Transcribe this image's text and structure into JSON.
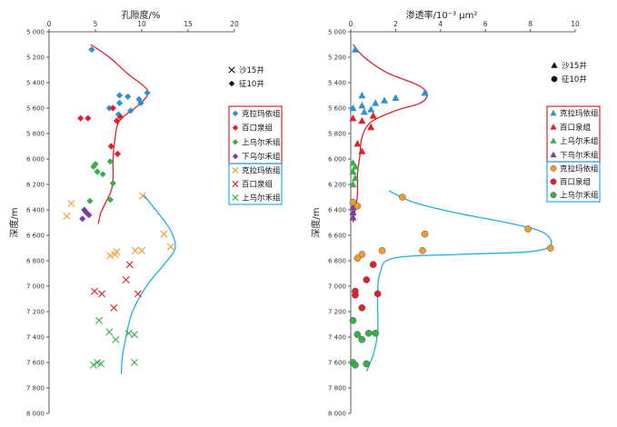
{
  "chart_data": [
    {
      "type": "scatter",
      "title": "",
      "xlabel": "孔隙度/%",
      "ylabel": "深度/m",
      "xlim": [
        0,
        20
      ],
      "ylim": [
        5000,
        8000
      ],
      "x_ticks": [
        "0",
        "5",
        "10",
        "15",
        "20"
      ],
      "y_ticks": [
        "5 000",
        "5 200",
        "5 400",
        "5 600",
        "5 800",
        "6 000",
        "6 200",
        "6 400",
        "6 600",
        "6 800",
        "7 000",
        "7 200",
        "7 400",
        "7 600",
        "7 800",
        "8 000"
      ],
      "well_legend": [
        {
          "label": "沙15井",
          "marker": "cross"
        },
        {
          "label": "征10井",
          "marker": "diamond"
        }
      ],
      "legend_groups": [
        {
          "box_color": "#e0202a",
          "items": [
            {
              "label": "克拉玛依组",
              "color": "#2f8fd0",
              "marker": "diamond"
            },
            {
              "label": "百口泉组",
              "color": "#e0202a",
              "marker": "diamond"
            },
            {
              "label": "上乌尔禾组",
              "color": "#3bae49",
              "marker": "diamond"
            },
            {
              "label": "下乌尔禾组",
              "color": "#7a3f9e",
              "marker": "diamond"
            }
          ]
        },
        {
          "box_color": "#22aee6",
          "items": [
            {
              "label": "克拉玛依组",
              "color": "#f29a2e",
              "marker": "cross"
            },
            {
              "label": "百口泉组",
              "color": "#e0202a",
              "marker": "cross"
            },
            {
              "label": "上乌尔禾组",
              "color": "#3bae49",
              "marker": "cross"
            }
          ]
        }
      ],
      "series": [
        {
          "name": "征10井 克拉玛依组",
          "color": "#2f8fd0",
          "marker": "diamond",
          "points": [
            [
              4.6,
              5140
            ],
            [
              6.5,
              5600
            ],
            [
              8.5,
              5510
            ],
            [
              9.7,
              5530
            ],
            [
              9.9,
              5560
            ],
            [
              10.6,
              5480
            ],
            [
              7.6,
              5500
            ],
            [
              7.6,
              5560
            ],
            [
              8.8,
              5620
            ],
            [
              7.5,
              5650
            ]
          ]
        },
        {
          "name": "征10井 百口泉组",
          "color": "#e0202a",
          "marker": "diamond",
          "points": [
            [
              3.4,
              5680
            ],
            [
              4.2,
              5680
            ],
            [
              7.3,
              5700
            ],
            [
              7.7,
              5670
            ],
            [
              6.7,
              5900
            ],
            [
              7.4,
              5960
            ],
            [
              6.9,
              5600
            ]
          ]
        },
        {
          "name": "征10井 上乌尔禾组",
          "color": "#3bae49",
          "marker": "diamond",
          "points": [
            [
              5.2,
              6100
            ],
            [
              5.8,
              6120
            ],
            [
              5.0,
              6040
            ],
            [
              4.8,
              6060
            ],
            [
              6.6,
              6020
            ],
            [
              6.9,
              6190
            ],
            [
              6.6,
              6320
            ],
            [
              4.4,
              6330
            ]
          ]
        },
        {
          "name": "征10井 下乌尔禾组",
          "color": "#7a3f9e",
          "marker": "diamond",
          "points": [
            [
              3.8,
              6400
            ],
            [
              3.6,
              6470
            ],
            [
              4.3,
              6440
            ],
            [
              4.0,
              6420
            ]
          ]
        },
        {
          "name": "沙15井 克拉玛依组",
          "color": "#f29a2e",
          "marker": "cross",
          "points": [
            [
              10.1,
              6290
            ],
            [
              2.4,
              6350
            ],
            [
              1.9,
              6450
            ],
            [
              12.4,
              6590
            ],
            [
              13.1,
              6690
            ],
            [
              7.3,
              6730
            ],
            [
              6.6,
              6760
            ],
            [
              9.3,
              6720
            ],
            [
              10.0,
              6720
            ],
            [
              7.1,
              6750
            ]
          ]
        },
        {
          "name": "沙15井 百口泉组",
          "color": "#e0202a",
          "marker": "cross",
          "points": [
            [
              4.9,
              7040
            ],
            [
              5.7,
              7060
            ],
            [
              7.0,
              7170
            ],
            [
              8.7,
              6830
            ],
            [
              8.3,
              6950
            ],
            [
              9.6,
              7060
            ]
          ]
        },
        {
          "name": "沙15井 上乌尔禾组",
          "color": "#3bae49",
          "marker": "cross",
          "points": [
            [
              5.4,
              7270
            ],
            [
              6.5,
              7360
            ],
            [
              7.2,
              7420
            ],
            [
              8.6,
              7370
            ],
            [
              9.2,
              7380
            ],
            [
              4.8,
              7620
            ],
            [
              5.2,
              7600
            ],
            [
              5.6,
              7610
            ],
            [
              9.2,
              7600
            ]
          ]
        }
      ],
      "trend_lines": [
        {
          "color": "#e0202a",
          "points": [
            [
              4.5,
              5100
            ],
            [
              6.5,
              5200
            ],
            [
              8.5,
              5330
            ],
            [
              10.4,
              5440
            ],
            [
              10.6,
              5500
            ],
            [
              9.6,
              5580
            ],
            [
              7.6,
              5700
            ],
            [
              7.1,
              5850
            ],
            [
              6.9,
              6000
            ],
            [
              6.9,
              6150
            ],
            [
              6.7,
              6250
            ],
            [
              6.2,
              6330
            ],
            [
              5.6,
              6420
            ],
            [
              5.3,
              6510
            ]
          ]
        },
        {
          "color": "#22aee6",
          "points": [
            [
              7.8,
              7690
            ],
            [
              7.9,
              7560
            ],
            [
              8.3,
              7400
            ],
            [
              9.0,
              7200
            ],
            [
              10.6,
              6990
            ],
            [
              12.4,
              6830
            ],
            [
              13.6,
              6700
            ],
            [
              13.1,
              6560
            ],
            [
              11.6,
              6410
            ],
            [
              10.2,
              6280
            ]
          ]
        }
      ]
    },
    {
      "type": "scatter",
      "title": "",
      "xlabel": "渗透率/10⁻³ μm²",
      "ylabel": "深度/m",
      "xlim": [
        0,
        10
      ],
      "ylim": [
        5000,
        8000
      ],
      "x_ticks": [
        "0",
        "2",
        "4",
        "6",
        "8",
        "10"
      ],
      "y_ticks": [
        "5 000",
        "5 200",
        "5 400",
        "5 600",
        "5 800",
        "6 000",
        "6 200",
        "6 400",
        "6 600",
        "6 800",
        "7 000",
        "7 200",
        "7 400",
        "7 600",
        "7 800",
        "8 000"
      ],
      "well_legend": [
        {
          "label": "沙15井",
          "marker": "triangle"
        },
        {
          "label": "征10井",
          "marker": "circle"
        }
      ],
      "legend_groups": [
        {
          "box_color": "#e0202a",
          "items": [
            {
              "label": "克拉玛依组",
              "color": "#2f8fd0",
              "marker": "triangle"
            },
            {
              "label": "百口泉组",
              "color": "#e0202a",
              "marker": "triangle"
            },
            {
              "label": "上乌尔禾组",
              "color": "#3bae49",
              "marker": "triangle"
            },
            {
              "label": "下乌尔禾组",
              "color": "#7a3f9e",
              "marker": "triangle"
            }
          ]
        },
        {
          "box_color": "#22aee6",
          "items": [
            {
              "label": "克拉玛依组",
              "color": "#f29a2e",
              "marker": "circle"
            },
            {
              "label": "百口泉组",
              "color": "#e0202a",
              "marker": "circle"
            },
            {
              "label": "上乌尔禾组",
              "color": "#3bae49",
              "marker": "circle"
            }
          ]
        }
      ],
      "series": [
        {
          "name": "沙15井 克拉玛依组",
          "color": "#2f8fd0",
          "marker": "triangle",
          "points": [
            [
              0.2,
              5140
            ],
            [
              3.3,
              5480
            ],
            [
              2.0,
              5520
            ],
            [
              1.5,
              5540
            ],
            [
              0.5,
              5500
            ],
            [
              1.1,
              5560
            ],
            [
              0.1,
              5600
            ],
            [
              0.5,
              5580
            ],
            [
              0.6,
              5630
            ],
            [
              0.9,
              5610
            ]
          ]
        },
        {
          "name": "沙15井 百口泉组",
          "color": "#e0202a",
          "marker": "triangle",
          "points": [
            [
              0.1,
              5680
            ],
            [
              1.0,
              5660
            ],
            [
              0.5,
              5700
            ],
            [
              0.9,
              5750
            ],
            [
              0.3,
              5880
            ],
            [
              0.5,
              5940
            ]
          ]
        },
        {
          "name": "沙15井 上乌尔禾组",
          "color": "#3bae49",
          "marker": "triangle",
          "points": [
            [
              0.1,
              6030
            ],
            [
              0.2,
              6060
            ],
            [
              0.1,
              6100
            ],
            [
              0.2,
              6150
            ],
            [
              0.1,
              6200
            ]
          ]
        },
        {
          "name": "沙15井 下乌尔禾组",
          "color": "#7a3f9e",
          "marker": "triangle",
          "points": [
            [
              0.1,
              6380
            ],
            [
              0.1,
              6420
            ],
            [
              0.1,
              6460
            ]
          ]
        },
        {
          "name": "征10井 克拉玛依组",
          "color": "#f29a2e",
          "marker": "circle",
          "points": [
            [
              2.3,
              6300
            ],
            [
              0.1,
              6340
            ],
            [
              0.3,
              6370
            ],
            [
              7.9,
              6550
            ],
            [
              3.3,
              6590
            ],
            [
              8.9,
              6700
            ],
            [
              3.2,
              6720
            ],
            [
              1.4,
              6720
            ],
            [
              0.5,
              6750
            ],
            [
              0.3,
              6780
            ]
          ]
        },
        {
          "name": "征10井 百口泉组",
          "color": "#e0202a",
          "marker": "circle",
          "points": [
            [
              1.0,
              6830
            ],
            [
              0.7,
              6950
            ],
            [
              0.2,
              7040
            ],
            [
              0.2,
              7070
            ],
            [
              1.2,
              7060
            ],
            [
              0.5,
              7170
            ]
          ]
        },
        {
          "name": "征10井 上乌尔禾组",
          "color": "#3bae49",
          "marker": "circle",
          "points": [
            [
              0.1,
              7270
            ],
            [
              0.3,
              7380
            ],
            [
              0.5,
              7420
            ],
            [
              0.8,
              7370
            ],
            [
              1.1,
              7370
            ],
            [
              0.1,
              7600
            ],
            [
              0.2,
              7620
            ],
            [
              0.7,
              7610
            ]
          ]
        }
      ],
      "trend_lines": [
        {
          "color": "#e0202a",
          "points": [
            [
              0.1,
              5100
            ],
            [
              0.6,
              5200
            ],
            [
              1.6,
              5320
            ],
            [
              3.0,
              5420
            ],
            [
              3.4,
              5490
            ],
            [
              3.1,
              5560
            ],
            [
              2.0,
              5620
            ],
            [
              0.9,
              5710
            ],
            [
              0.5,
              5830
            ],
            [
              0.4,
              5980
            ],
            [
              0.3,
              6120
            ],
            [
              0.3,
              6280
            ],
            [
              0.2,
              6400
            ],
            [
              0.1,
              6500
            ]
          ]
        },
        {
          "color": "#22aee6",
          "points": [
            [
              0.7,
              7670
            ],
            [
              1.0,
              7540
            ],
            [
              1.2,
              7360
            ],
            [
              1.2,
              7100
            ],
            [
              1.3,
              6900
            ],
            [
              1.9,
              6780
            ],
            [
              4.9,
              6750
            ],
            [
              7.9,
              6730
            ],
            [
              8.9,
              6680
            ],
            [
              8.6,
              6580
            ],
            [
              7.2,
              6510
            ],
            [
              4.6,
              6420
            ],
            [
              2.8,
              6340
            ],
            [
              1.7,
              6250
            ]
          ]
        }
      ]
    }
  ]
}
